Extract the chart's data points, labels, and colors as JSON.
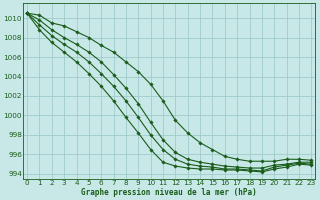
{
  "title": "Graphe pression niveau de la mer (hPa)",
  "background_color": "#c8e8e8",
  "grid_color": "#a0cccc",
  "line_color": "#1a5c1a",
  "xlim": [
    -0.3,
    23.3
  ],
  "ylim": [
    993.5,
    1011.5
  ],
  "xticks": [
    0,
    1,
    2,
    3,
    4,
    5,
    6,
    7,
    8,
    9,
    10,
    11,
    12,
    13,
    14,
    15,
    16,
    17,
    18,
    19,
    20,
    21,
    22,
    23
  ],
  "yticks": [
    994,
    996,
    998,
    1000,
    1002,
    1004,
    1006,
    1008,
    1010
  ],
  "series": [
    [
      1010.5,
      1010.3,
      1009.5,
      1009.2,
      1008.6,
      1008.0,
      1007.2,
      1006.5,
      1005.5,
      1004.5,
      1003.2,
      1001.5,
      999.5,
      998.2,
      997.2,
      996.5,
      995.8,
      995.5,
      995.3,
      995.3,
      995.3,
      995.5,
      995.5,
      995.4
    ],
    [
      1010.5,
      1009.8,
      1008.8,
      1008.0,
      1007.3,
      1006.5,
      1005.5,
      1004.2,
      1002.8,
      1001.2,
      999.3,
      997.5,
      996.2,
      995.5,
      995.2,
      995.0,
      994.8,
      994.7,
      994.6,
      994.6,
      994.9,
      995.0,
      995.2,
      995.2
    ],
    [
      1010.5,
      1009.3,
      1008.2,
      1007.3,
      1006.5,
      1005.5,
      1004.3,
      1003.0,
      1001.5,
      999.8,
      998.0,
      996.5,
      995.5,
      995.0,
      994.8,
      994.7,
      994.5,
      994.5,
      994.4,
      994.3,
      994.7,
      994.9,
      995.1,
      995.0
    ],
    [
      1010.5,
      1008.8,
      1007.5,
      1006.5,
      1005.5,
      1004.3,
      1003.0,
      1001.5,
      999.8,
      998.2,
      996.5,
      995.2,
      994.8,
      994.6,
      994.5,
      994.5,
      994.4,
      994.4,
      994.3,
      994.2,
      994.5,
      994.7,
      995.0,
      994.9
    ]
  ]
}
